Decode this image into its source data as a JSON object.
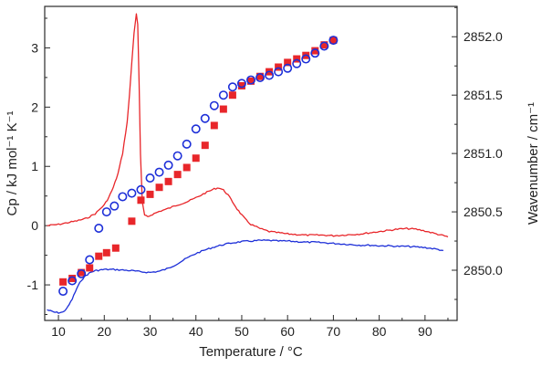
{
  "chart_data": {
    "type": "line+scatter (dual y-axis)",
    "xlabel": "Temperature / °C",
    "ylabel_left": "Cp / kJ mol⁻¹ K⁻¹",
    "ylabel_right": "Wavenumber / cm⁻¹",
    "xlim": [
      7,
      97
    ],
    "ylim_left": [
      -1.6,
      3.7
    ],
    "ylim_right": [
      2849.57,
      2852.26
    ],
    "x_ticks": [
      "10",
      "20",
      "30",
      "40",
      "50",
      "60",
      "70",
      "80",
      "90"
    ],
    "y_left_ticks": [
      "-1",
      "0",
      "1",
      "2",
      "3"
    ],
    "y_right_ticks": [
      "2850.0",
      "2850.5",
      "2851.0",
      "2851.5",
      "2852.0"
    ],
    "series": [
      {
        "name": "Cp red line",
        "kind": "line",
        "axis": "left",
        "color": "#e8262a",
        "x": [
          7.5,
          10,
          12,
          14,
          16,
          18,
          20,
          21,
          22,
          23,
          24,
          25,
          25.5,
          26,
          26.5,
          27,
          27.3,
          27.6,
          27.9,
          28.3,
          28.8,
          29.5,
          30.5,
          32,
          34,
          36,
          38,
          40,
          42,
          44,
          45,
          46,
          47,
          48,
          49,
          50,
          51,
          52,
          54,
          56,
          58,
          60,
          62,
          64,
          66,
          68,
          70,
          72,
          74,
          76,
          78,
          80,
          82,
          84,
          86,
          88,
          90,
          92,
          94,
          95
        ],
        "y": [
          0.0,
          0.02,
          0.05,
          0.08,
          0.12,
          0.2,
          0.35,
          0.48,
          0.65,
          0.88,
          1.22,
          1.75,
          2.2,
          2.75,
          3.25,
          3.58,
          3.4,
          2.4,
          1.2,
          0.4,
          0.17,
          0.15,
          0.19,
          0.24,
          0.29,
          0.35,
          0.4,
          0.47,
          0.55,
          0.62,
          0.64,
          0.6,
          0.52,
          0.4,
          0.28,
          0.18,
          0.09,
          0.02,
          -0.05,
          -0.1,
          -0.12,
          -0.14,
          -0.15,
          -0.16,
          -0.16,
          -0.16,
          -0.17,
          -0.16,
          -0.15,
          -0.14,
          -0.12,
          -0.1,
          -0.08,
          -0.06,
          -0.05,
          -0.06,
          -0.09,
          -0.13,
          -0.17,
          -0.19
        ]
      },
      {
        "name": "Cp blue line",
        "kind": "line",
        "axis": "left",
        "color": "#1d2fd8",
        "x": [
          7.5,
          9,
          10,
          11,
          12,
          13,
          14,
          15,
          16,
          17,
          18,
          19,
          20,
          22,
          24,
          26,
          28,
          30,
          32,
          34,
          36,
          38,
          40,
          42,
          44,
          46,
          48,
          50,
          52,
          54,
          56,
          58,
          60,
          62,
          64,
          66,
          68,
          70,
          72,
          74,
          76,
          78,
          80,
          82,
          84,
          86,
          88,
          90,
          92,
          94
        ],
        "y": [
          -1.42,
          -1.46,
          -1.47,
          -1.46,
          -1.38,
          -1.24,
          -1.06,
          -0.92,
          -0.84,
          -0.79,
          -0.76,
          -0.75,
          -0.74,
          -0.74,
          -0.75,
          -0.76,
          -0.78,
          -0.79,
          -0.77,
          -0.72,
          -0.64,
          -0.55,
          -0.47,
          -0.41,
          -0.36,
          -0.32,
          -0.29,
          -0.27,
          -0.26,
          -0.25,
          -0.25,
          -0.26,
          -0.26,
          -0.27,
          -0.28,
          -0.28,
          -0.29,
          -0.3,
          -0.31,
          -0.32,
          -0.33,
          -0.33,
          -0.34,
          -0.34,
          -0.35,
          -0.35,
          -0.36,
          -0.37,
          -0.39,
          -0.42
        ]
      },
      {
        "name": "Wavenumber red squares",
        "kind": "scatter",
        "marker": "square",
        "axis": "right",
        "color": "#e8262a",
        "x": [
          11,
          13,
          15,
          16.8,
          18.8,
          20.5,
          22.5,
          26,
          28,
          30,
          32,
          34,
          36,
          38,
          40,
          42,
          44,
          46,
          48,
          50,
          52,
          54,
          56,
          58,
          60,
          62,
          64,
          66,
          68,
          70
        ],
        "y": [
          2849.9,
          2849.93,
          2849.98,
          2850.02,
          2850.12,
          2850.15,
          2850.19,
          2850.42,
          2850.6,
          2850.65,
          2850.71,
          2850.76,
          2850.82,
          2850.88,
          2850.96,
          2851.07,
          2851.24,
          2851.38,
          2851.5,
          2851.58,
          2851.62,
          2851.66,
          2851.7,
          2851.74,
          2851.78,
          2851.81,
          2851.84,
          2851.88,
          2851.93,
          2851.97
        ]
      },
      {
        "name": "Wavenumber blue circles",
        "kind": "scatter",
        "marker": "open-circle",
        "axis": "right",
        "color": "#1d2fd8",
        "x": [
          11,
          13,
          15,
          16.8,
          18.8,
          20.5,
          22.2,
          24,
          26,
          28,
          30,
          32,
          34,
          36,
          38,
          40,
          42,
          44,
          46,
          48,
          50,
          52,
          54,
          56,
          58,
          60,
          62,
          64,
          66,
          68,
          70
        ],
        "y": [
          2849.82,
          2849.91,
          2849.97,
          2850.09,
          2850.36,
          2850.5,
          2850.55,
          2850.63,
          2850.66,
          2850.69,
          2850.79,
          2850.84,
          2850.9,
          2850.98,
          2851.08,
          2851.21,
          2851.3,
          2851.41,
          2851.5,
          2851.57,
          2851.6,
          2851.63,
          2851.65,
          2851.67,
          2851.7,
          2851.73,
          2851.77,
          2851.81,
          2851.86,
          2851.92,
          2851.97
        ]
      }
    ]
  }
}
